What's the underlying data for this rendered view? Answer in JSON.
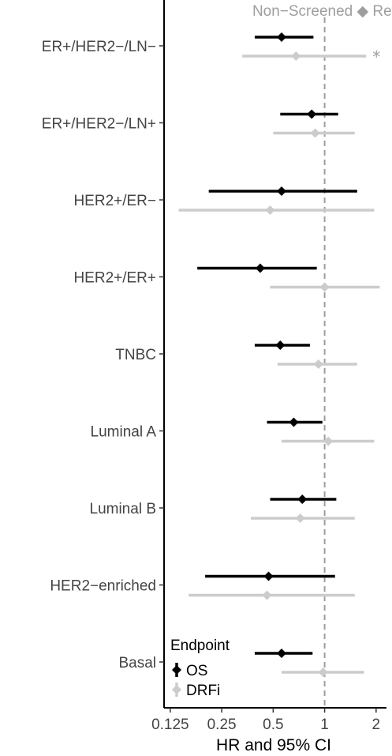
{
  "chart_data": {
    "type": "forest",
    "xlabel": "HR and 95% CI",
    "x_scale": "log2",
    "xlim": [
      0.115,
      2.3
    ],
    "xticks": [
      0.125,
      0.25,
      0.5,
      1,
      2
    ],
    "xtick_labels": [
      "0.125",
      "0.25",
      "0.5",
      "1",
      "2"
    ],
    "reference_line": {
      "value": 1,
      "label": "Non−Screened ◆ Ref.",
      "style": "dashed"
    },
    "categories": [
      "ER+/HER2−/LN−",
      "ER+/HER2−/LN+",
      "HER2+/ER−",
      "HER2+/ER+",
      "TNBC",
      "Luminal A",
      "Luminal B",
      "HER2−enriched",
      "Basal"
    ],
    "series": [
      {
        "name": "OS",
        "color": "#000000",
        "points": [
          {
            "hr": 0.56,
            "lo": 0.39,
            "hi": 0.86
          },
          {
            "hr": 0.84,
            "lo": 0.55,
            "hi": 1.2
          },
          {
            "hr": 0.56,
            "lo": 0.21,
            "hi": 1.55
          },
          {
            "hr": 0.42,
            "lo": 0.18,
            "hi": 0.9
          },
          {
            "hr": 0.55,
            "lo": 0.39,
            "hi": 0.82
          },
          {
            "hr": 0.66,
            "lo": 0.46,
            "hi": 0.97
          },
          {
            "hr": 0.74,
            "lo": 0.48,
            "hi": 1.17
          },
          {
            "hr": 0.47,
            "lo": 0.2,
            "hi": 1.15
          },
          {
            "hr": 0.56,
            "lo": 0.39,
            "hi": 0.85
          }
        ]
      },
      {
        "name": "DRFi",
        "color": "#cccccc",
        "points": [
          {
            "hr": 0.68,
            "lo": 0.33,
            "hi": 1.75
          },
          {
            "hr": 0.88,
            "lo": 0.5,
            "hi": 1.5
          },
          {
            "hr": 0.48,
            "lo": 0.14,
            "hi": 1.95
          },
          {
            "hr": 1.0,
            "lo": 0.48,
            "hi": 2.1
          },
          {
            "hr": 0.92,
            "lo": 0.53,
            "hi": 1.55
          },
          {
            "hr": 1.05,
            "lo": 0.56,
            "hi": 1.95
          },
          {
            "hr": 0.72,
            "lo": 0.37,
            "hi": 1.5
          },
          {
            "hr": 0.46,
            "lo": 0.16,
            "hi": 1.5
          },
          {
            "hr": 0.98,
            "lo": 0.56,
            "hi": 1.7
          }
        ]
      }
    ],
    "annotations": [
      {
        "category": "ER+/HER2−/LN−",
        "series": "DRFi",
        "text": "*"
      }
    ],
    "legend": {
      "title": "Endpoint",
      "position": "bottom-left",
      "items": [
        "OS",
        "DRFi"
      ]
    },
    "grid": false
  }
}
